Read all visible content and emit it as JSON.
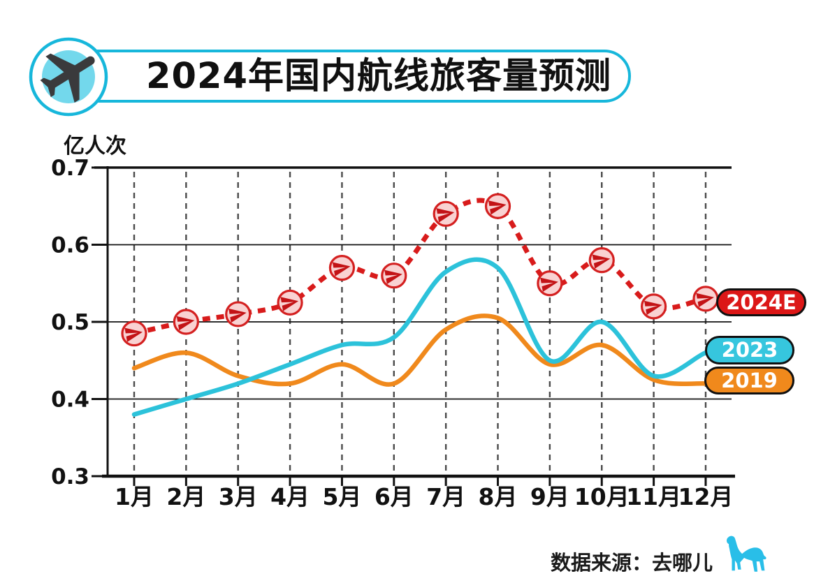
{
  "header": {
    "icon": "airplane-takeoff-icon"
  },
  "source": {
    "label": "数据来源：去哪儿",
    "logo": "camel-icon",
    "logo_color": "#29bee8"
  },
  "colors": {
    "accent_cyan": "#17b7db",
    "series_2024e": "#d81b1b",
    "series_2023": "#2cc2da",
    "series_2019": "#f0891c",
    "marker_fill": "#f9d2d2",
    "marker_stroke": "#d42020",
    "marker_glyph": "#c31316",
    "grid": "#4a4a4a",
    "axis": "#111111"
  },
  "chart_data": {
    "type": "line",
    "title": "2024年国内航线旅客量预测",
    "xlabel": "",
    "ylabel": "亿人次",
    "ylim": [
      0.3,
      0.7
    ],
    "yticks": [
      "0.7",
      "0.6",
      "0.5",
      "0.4",
      "0.3"
    ],
    "ytick_values": [
      0.7,
      0.6,
      0.5,
      0.4,
      0.3
    ],
    "grid": "vertical-dashed, horizontal-solid",
    "legend_position": "right-of-line-ends",
    "categories": [
      "1月",
      "2月",
      "3月",
      "4月",
      "5月",
      "6月",
      "7月",
      "8月",
      "9月",
      "10月",
      "11月",
      "12月"
    ],
    "series": [
      {
        "name": "2024E",
        "style": "dashed",
        "marker": "circled-paper-plane",
        "color": "#d81b1b",
        "values": [
          0.485,
          0.5,
          0.51,
          0.525,
          0.57,
          0.56,
          0.64,
          0.65,
          0.55,
          0.58,
          0.52,
          0.53
        ]
      },
      {
        "name": "2023",
        "style": "solid",
        "marker": "none",
        "color": "#2cc2da",
        "values": [
          0.38,
          0.4,
          0.42,
          0.445,
          0.47,
          0.48,
          0.565,
          0.57,
          0.45,
          0.5,
          0.43,
          0.46
        ]
      },
      {
        "name": "2019",
        "style": "solid",
        "marker": "none",
        "color": "#f0891c",
        "values": [
          0.44,
          0.46,
          0.43,
          0.42,
          0.445,
          0.42,
          0.49,
          0.505,
          0.445,
          0.47,
          0.425,
          0.42
        ]
      }
    ]
  }
}
